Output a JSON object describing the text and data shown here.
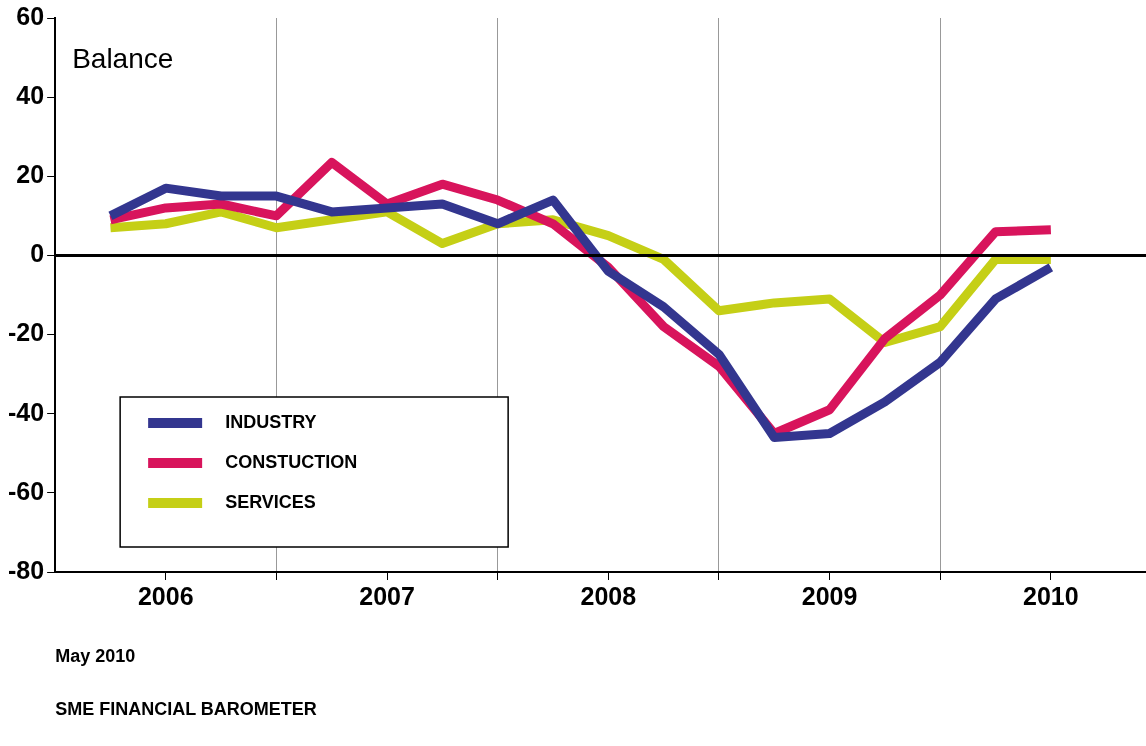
{
  "chart_data": {
    "type": "line",
    "x": [
      2006.25,
      2006.5,
      2006.75,
      2007,
      2007.25,
      2007.5,
      2007.75,
      2008,
      2008.25,
      2008.5,
      2008.75,
      2009,
      2009.25,
      2009.5,
      2009.75,
      2010,
      2010.25,
      2010.5
    ],
    "series": [
      {
        "name": "INDUSTRY",
        "color": "#33368f",
        "values": [
          10,
          17,
          15,
          15,
          11,
          12,
          13,
          8,
          14,
          -4,
          -13,
          -25,
          -46,
          -45,
          -37,
          -27,
          -11,
          -3
        ]
      },
      {
        "name": "CONSTUCTION",
        "color": "#d8145c",
        "values": [
          9,
          12,
          13,
          10,
          23.5,
          13,
          18,
          14,
          8,
          -3,
          -18,
          -28,
          -45,
          -39,
          -21,
          -10,
          6,
          6.5
        ]
      },
      {
        "name": "SERVICES",
        "color": "#c5cf16",
        "values": [
          7,
          8,
          11,
          7,
          9,
          11,
          3,
          8,
          9,
          5,
          -1,
          -14,
          -12,
          -11,
          -22,
          -18,
          -1,
          -1
        ]
      }
    ],
    "xlim": [
      2006,
      2010.93
    ],
    "xticks": [
      {
        "value": 2006.5,
        "label": "2006"
      },
      {
        "value": 2007,
        "label": null
      },
      {
        "value": 2007.5,
        "label": "2007"
      },
      {
        "value": 2008,
        "label": null
      },
      {
        "value": 2008.5,
        "label": "2008"
      },
      {
        "value": 2009,
        "label": null
      },
      {
        "value": 2009.5,
        "label": "2009"
      },
      {
        "value": 2010,
        "label": null
      },
      {
        "value": 2010.5,
        "label": "2010"
      }
    ],
    "ylim": [
      -80,
      60
    ],
    "yticks": [
      -80,
      -60,
      -40,
      -20,
      0,
      20,
      40,
      60
    ],
    "grid": "x",
    "legend": "bottom left",
    "marker": "none",
    "line_style": "solid",
    "ref_lines": [
      {
        "axis": "y",
        "value": 0,
        "label": null,
        "color": "#000000"
      }
    ],
    "annotations": [
      "Balance",
      "May 2010",
      "SME FINANCIAL BAROMETER"
    ]
  }
}
